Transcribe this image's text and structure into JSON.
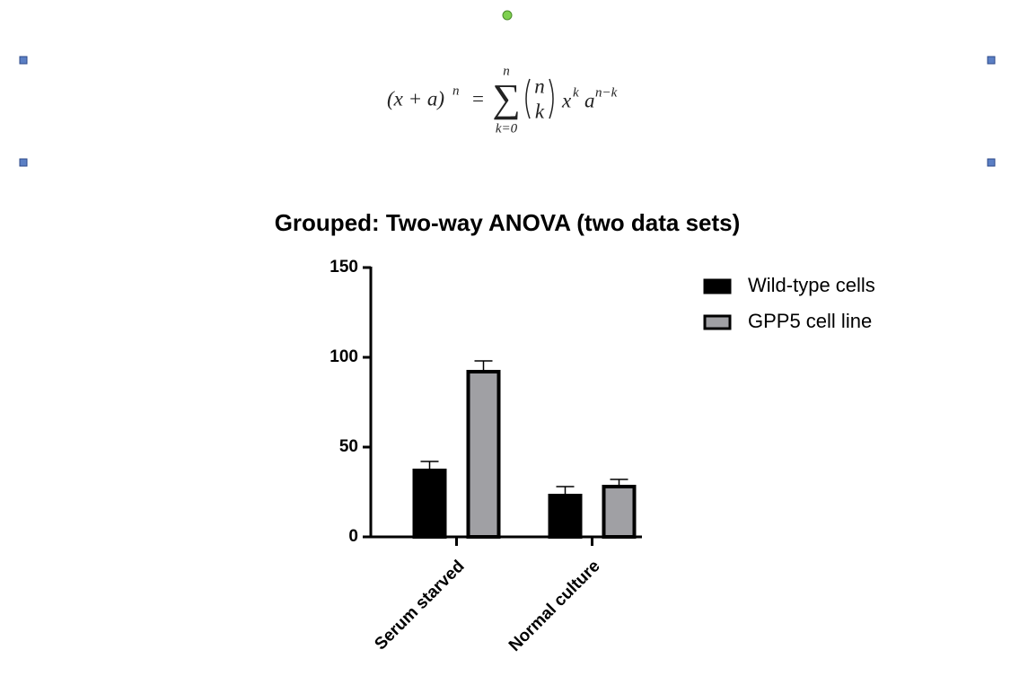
{
  "equation": {
    "lhs": "(x + a)",
    "lhs_exp": "n",
    "eq": "=",
    "sum_symbol": "∑",
    "sum_top": "n",
    "sum_bottom": "k=0",
    "binom_top": "n",
    "binom_bottom": "k",
    "x": "x",
    "x_exp": "k",
    "a": "a",
    "a_exp": "n−k"
  },
  "chart_data": {
    "type": "bar",
    "title": "Grouped: Two-way ANOVA (two data sets)",
    "categories": [
      "Serum starved",
      "Normal culture"
    ],
    "series": [
      {
        "name": "Wild-type cells",
        "color": "#000000",
        "values": [
          38,
          24
        ],
        "errors": [
          4,
          4
        ]
      },
      {
        "name": "GPP5 cell line",
        "color": "#a0a0a4",
        "values": [
          93,
          29
        ],
        "errors": [
          5,
          3
        ]
      }
    ],
    "ylim": [
      0,
      150
    ],
    "yticks": [
      0,
      50,
      100,
      150
    ],
    "grid": false,
    "legend": "right"
  }
}
